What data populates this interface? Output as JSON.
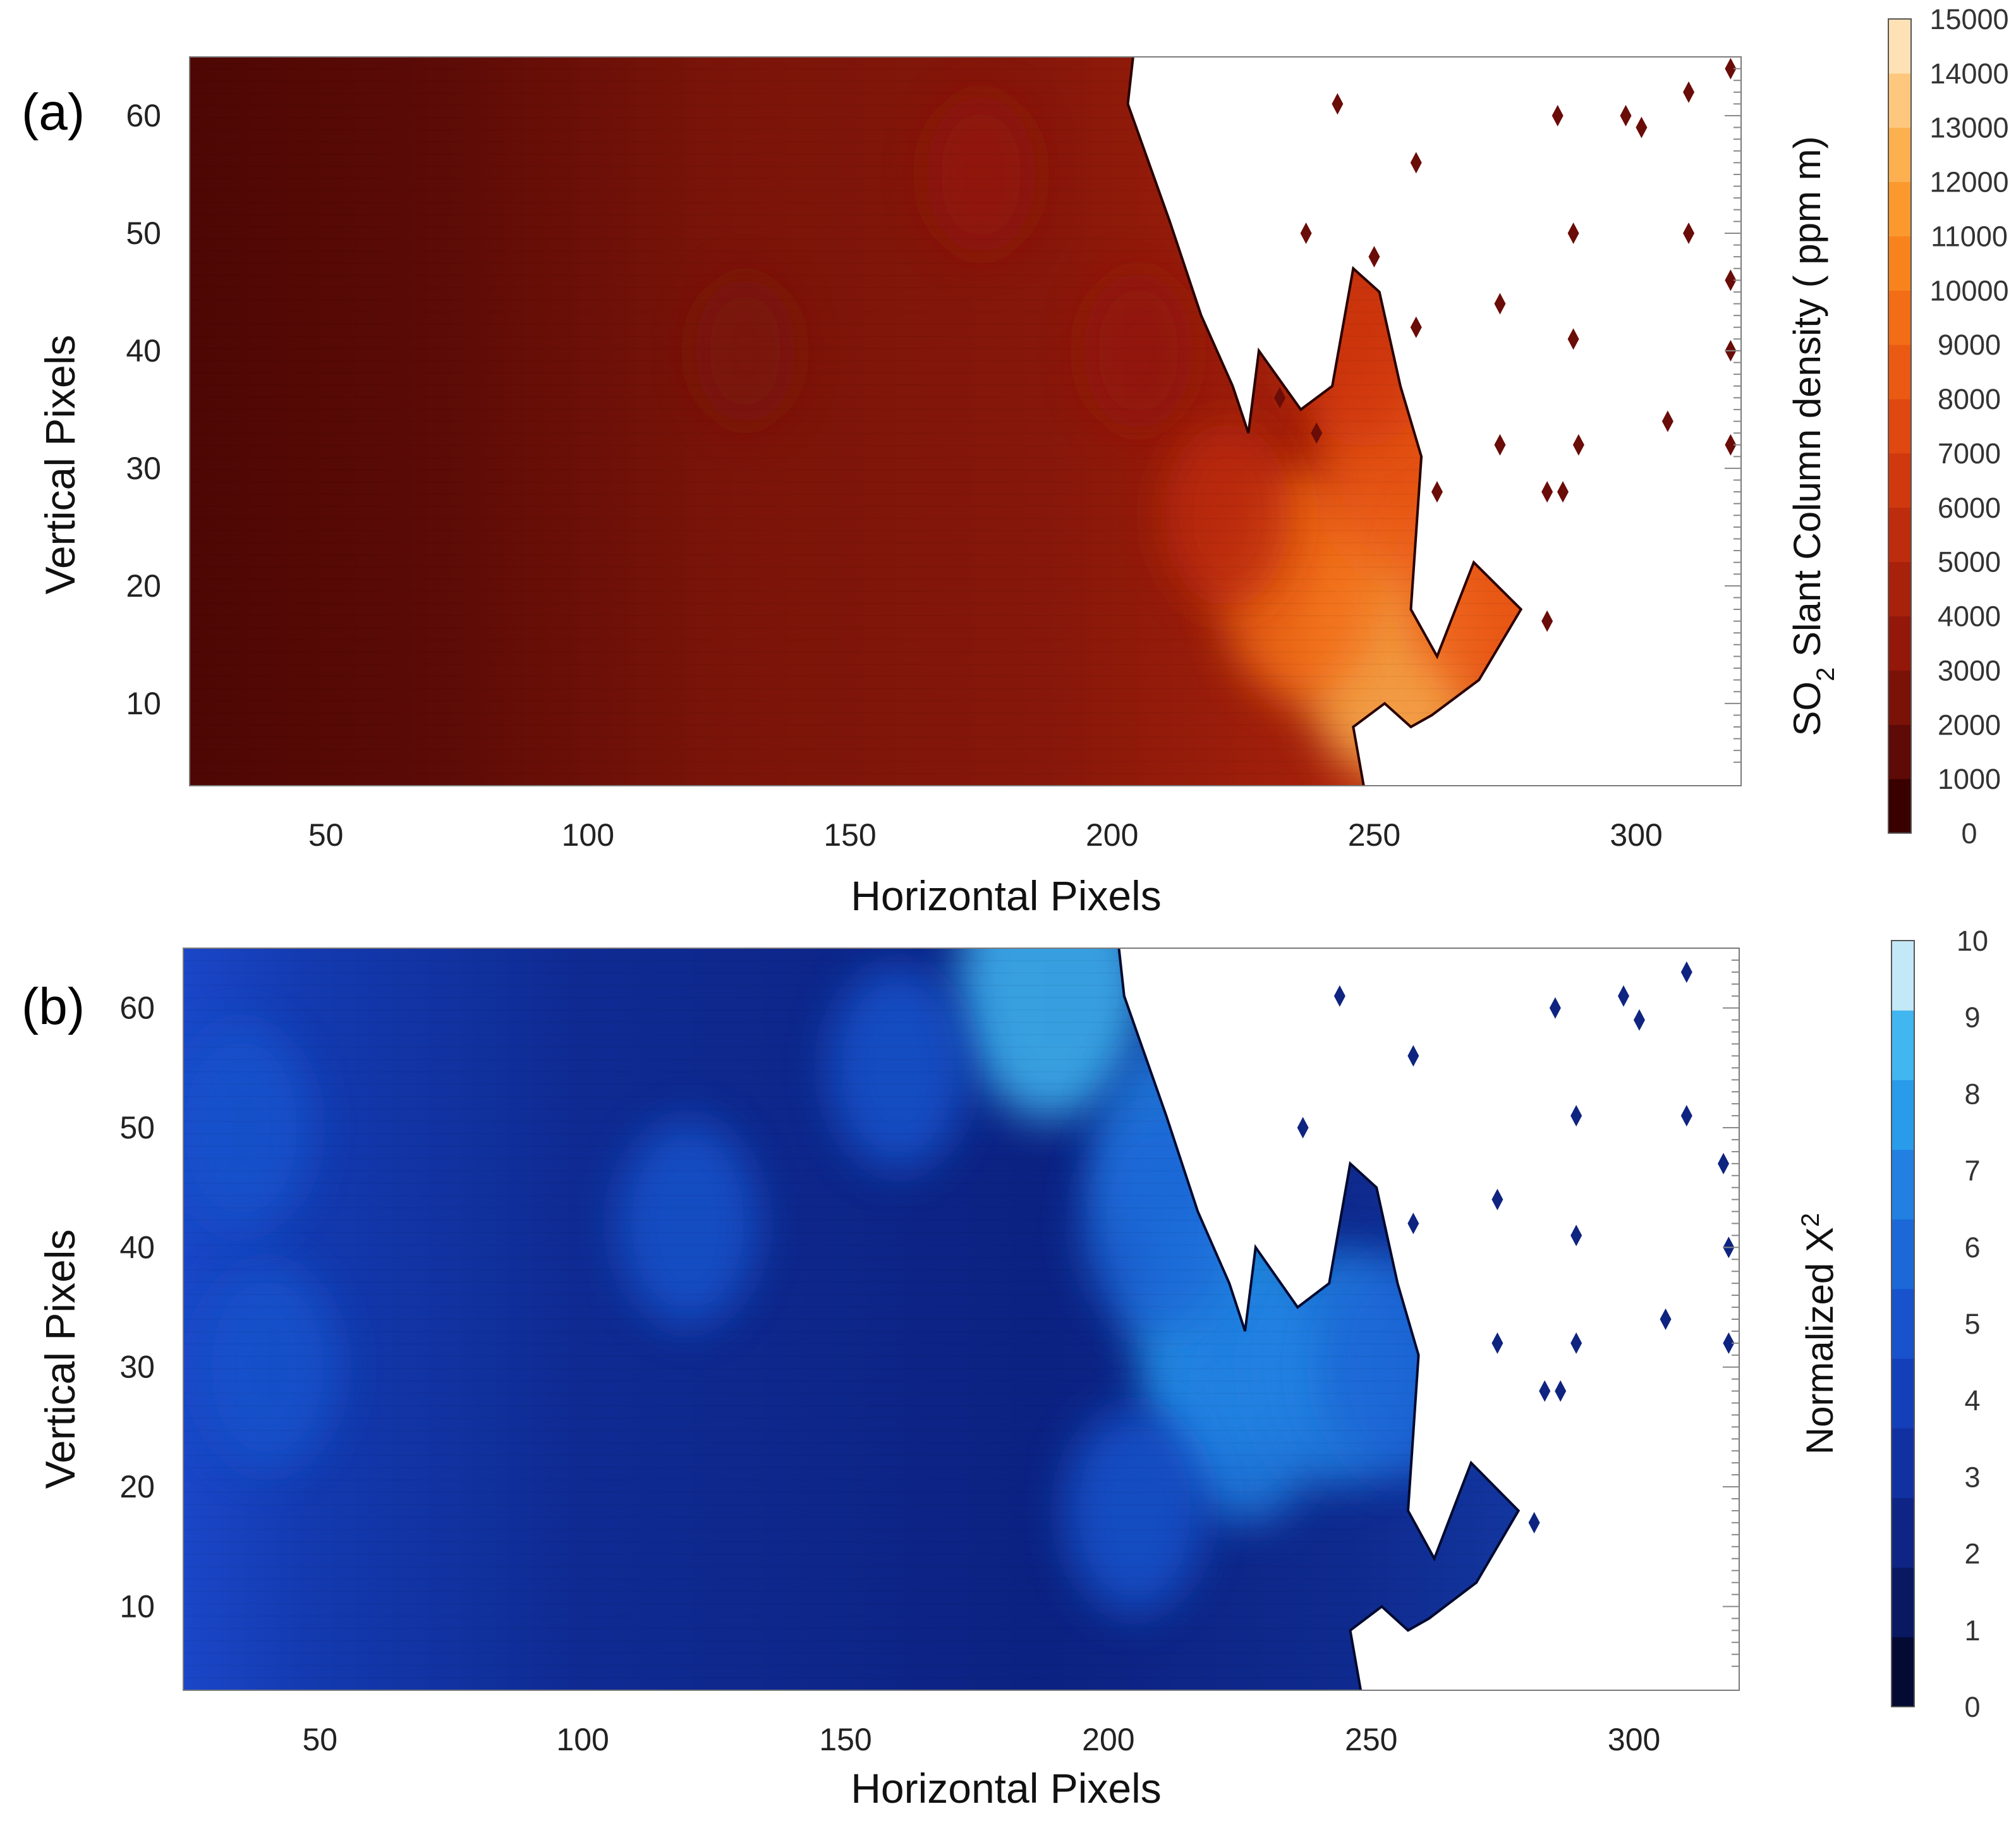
{
  "chart_data": [
    {
      "panel_label": "(a)",
      "type": "heatmap",
      "xlabel": "Horizontal Pixels",
      "ylabel": "Vertical Pixels",
      "xlim": [
        24,
        320
      ],
      "ylim": [
        3,
        65
      ],
      "xticks": [
        "50",
        "100",
        "150",
        "200",
        "250",
        "300"
      ],
      "yticks": [
        "10",
        "20",
        "30",
        "40",
        "50",
        "60"
      ],
      "colorbar": {
        "label_prefix": "SO",
        "label_subscript": "2",
        "label_suffix": " Slant Column density ( ppm m)",
        "min": 0,
        "max": 15000,
        "ticks": [
          "0",
          "1000",
          "2000",
          "3000",
          "4000",
          "5000",
          "6000",
          "7000",
          "8000",
          "9000",
          "10000",
          "11000",
          "12000",
          "13000",
          "14000",
          "15000"
        ],
        "colors": [
          "#3a0000",
          "#5e0a06",
          "#7a1208",
          "#93180a",
          "#a8210b",
          "#bd2c0d",
          "#d0390e",
          "#df4810",
          "#eb5a12",
          "#f36d16",
          "#f8831d",
          "#fb992f",
          "#fcb04f",
          "#fdc87e",
          "#fee1b5"
        ]
      },
      "plume_edge": [
        [
          204,
          65
        ],
        [
          203,
          61
        ],
        [
          211,
          51
        ],
        [
          217,
          43
        ],
        [
          223,
          37
        ],
        [
          226,
          33
        ],
        [
          228,
          40
        ],
        [
          236,
          35
        ],
        [
          242,
          37
        ],
        [
          246,
          47
        ],
        [
          251,
          45
        ],
        [
          255,
          37
        ],
        [
          259,
          31
        ],
        [
          257,
          18
        ],
        [
          262,
          14
        ],
        [
          269,
          22
        ],
        [
          278,
          18
        ],
        [
          270,
          12
        ],
        [
          261,
          9
        ],
        [
          257,
          8
        ],
        [
          252,
          10
        ],
        [
          246,
          8
        ],
        [
          248,
          3
        ]
      ],
      "hotspots": [
        {
          "x": 253,
          "y": 15,
          "level": 12000
        },
        {
          "x": 236,
          "y": 20,
          "level": 9000
        },
        {
          "x": 255,
          "y": 30,
          "level": 8500
        },
        {
          "x": 270,
          "y": 20,
          "level": 8000
        },
        {
          "x": 248,
          "y": 40,
          "level": 6500
        },
        {
          "x": 222,
          "y": 26,
          "level": 5000
        },
        {
          "x": 205,
          "y": 40,
          "level": 3500
        },
        {
          "x": 175,
          "y": 55,
          "level": 3000
        },
        {
          "x": 130,
          "y": 40,
          "level": 2500
        }
      ],
      "isolated_points": [
        [
          243,
          61
        ],
        [
          258,
          56
        ],
        [
          285,
          60
        ],
        [
          298,
          60
        ],
        [
          301,
          59
        ],
        [
          310,
          62
        ],
        [
          318,
          64
        ],
        [
          237,
          50
        ],
        [
          250,
          48
        ],
        [
          288,
          50
        ],
        [
          310,
          50
        ],
        [
          318,
          46
        ],
        [
          258,
          42
        ],
        [
          274,
          44
        ],
        [
          288,
          41
        ],
        [
          318,
          40
        ],
        [
          232,
          36
        ],
        [
          239,
          33
        ],
        [
          274,
          32
        ],
        [
          289,
          32
        ],
        [
          306,
          34
        ],
        [
          318,
          32
        ],
        [
          283,
          28
        ],
        [
          286,
          28
        ],
        [
          262,
          28
        ],
        [
          283,
          17
        ]
      ]
    },
    {
      "panel_label": "(b)",
      "type": "heatmap",
      "xlabel": "Horizontal Pixels",
      "ylabel": "Vertical Pixels",
      "xlim": [
        24,
        320
      ],
      "ylim": [
        3,
        65
      ],
      "xticks": [
        "50",
        "100",
        "150",
        "200",
        "250",
        "300"
      ],
      "yticks": [
        "10",
        "20",
        "30",
        "40",
        "50",
        "60"
      ],
      "colorbar": {
        "label_prefix": "Normalized X",
        "label_superscript": "2",
        "min": 0,
        "max": 10,
        "ticks": [
          "0",
          "1",
          "2",
          "3",
          "4",
          "5",
          "6",
          "7",
          "8",
          "9",
          "10"
        ],
        "colors": [
          "#050a33",
          "#0a1862",
          "#0e2585",
          "#1131a3",
          "#143fba",
          "#1852cc",
          "#1c68d8",
          "#2180e2",
          "#289bea",
          "#41b6f0",
          "#c3e8f7"
        ]
      },
      "plume_edge": [
        [
          202,
          65
        ],
        [
          203,
          61
        ],
        [
          211,
          51
        ],
        [
          217,
          43
        ],
        [
          223,
          37
        ],
        [
          226,
          33
        ],
        [
          228,
          40
        ],
        [
          236,
          35
        ],
        [
          242,
          37
        ],
        [
          246,
          47
        ],
        [
          251,
          45
        ],
        [
          255,
          37
        ],
        [
          259,
          31
        ],
        [
          257,
          18
        ],
        [
          262,
          14
        ],
        [
          269,
          22
        ],
        [
          278,
          18
        ],
        [
          270,
          12
        ],
        [
          261,
          9
        ],
        [
          257,
          8
        ],
        [
          252,
          10
        ],
        [
          246,
          8
        ],
        [
          248,
          3
        ]
      ],
      "hotspots": [
        {
          "x": 189,
          "y": 62,
          "level": 9
        },
        {
          "x": 214,
          "y": 48,
          "level": 7
        },
        {
          "x": 222,
          "y": 33,
          "level": 8
        },
        {
          "x": 226,
          "y": 27,
          "level": 7
        },
        {
          "x": 244,
          "y": 30,
          "level": 7
        },
        {
          "x": 256,
          "y": 30,
          "level": 6
        },
        {
          "x": 210,
          "y": 42,
          "level": 6
        },
        {
          "x": 205,
          "y": 18,
          "level": 5
        },
        {
          "x": 40,
          "y": 30,
          "level": 5
        },
        {
          "x": 35,
          "y": 50,
          "level": 5
        },
        {
          "x": 120,
          "y": 42,
          "level": 5
        },
        {
          "x": 160,
          "y": 55,
          "level": 5
        }
      ],
      "isolated_points": [
        [
          244,
          61
        ],
        [
          258,
          56
        ],
        [
          285,
          60
        ],
        [
          298,
          61
        ],
        [
          301,
          59
        ],
        [
          310,
          63
        ],
        [
          237,
          50
        ],
        [
          289,
          51
        ],
        [
          310,
          51
        ],
        [
          317,
          47
        ],
        [
          258,
          42
        ],
        [
          274,
          44
        ],
        [
          289,
          41
        ],
        [
          306,
          34
        ],
        [
          289,
          32
        ],
        [
          274,
          32
        ],
        [
          283,
          28
        ],
        [
          286,
          28
        ],
        [
          281,
          17
        ],
        [
          318,
          40
        ],
        [
          318,
          32
        ]
      ]
    }
  ]
}
